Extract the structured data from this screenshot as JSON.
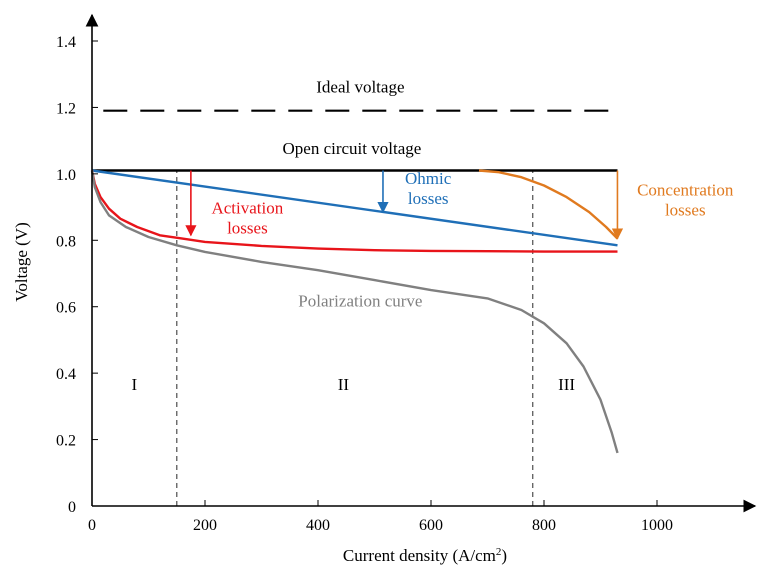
{
  "chart_data": {
    "type": "line",
    "title": "",
    "xlabel": "Current density (A/cm",
    "xlabel_sup": "2",
    "xlabel_close": ")",
    "ylabel": "Voltage (V)",
    "xlim": [
      0,
      1180
    ],
    "ylim": [
      0,
      1.5
    ],
    "xticks": [
      0,
      200,
      400,
      600,
      800,
      1000
    ],
    "yticks": [
      0,
      0.2,
      0.4,
      0.6,
      0.8,
      1.0,
      1.2,
      1.4
    ],
    "ytick_labels": [
      "0",
      "0.2",
      "0.4",
      "0.6",
      "0.8",
      "1.0",
      "1.2",
      "1.4"
    ],
    "grid": false,
    "series": [
      {
        "name": "Ideal voltage",
        "color": "#000000",
        "dash": "dashed",
        "x": [
          20,
          930
        ],
        "y": [
          1.19,
          1.19
        ]
      },
      {
        "name": "Open circuit voltage",
        "color": "#000000",
        "dash": "solid",
        "x": [
          0,
          930
        ],
        "y": [
          1.01,
          1.01
        ]
      },
      {
        "name": "",
        "color": "#1f6fb7",
        "dash": "solid",
        "x": [
          0,
          930
        ],
        "y": [
          1.01,
          0.785
        ]
      },
      {
        "name": "",
        "color": "#e8141a",
        "dash": "solid",
        "x": [
          0,
          5,
          15,
          30,
          50,
          80,
          120,
          160,
          200,
          300,
          400,
          500,
          600,
          700,
          800,
          930
        ],
        "y": [
          1.01,
          0.97,
          0.93,
          0.895,
          0.865,
          0.84,
          0.815,
          0.805,
          0.795,
          0.783,
          0.775,
          0.77,
          0.768,
          0.767,
          0.766,
          0.766
        ]
      },
      {
        "name": "",
        "color": "#e07a1f",
        "dash": "solid",
        "x": [
          685,
          720,
          760,
          800,
          840,
          880,
          910,
          930
        ],
        "y": [
          1.01,
          1.005,
          0.99,
          0.965,
          0.93,
          0.885,
          0.84,
          0.805
        ]
      },
      {
        "name": "Polarization curve",
        "color": "#808080",
        "dash": "solid",
        "x": [
          0,
          5,
          15,
          30,
          60,
          100,
          150,
          200,
          300,
          400,
          500,
          600,
          700,
          760,
          800,
          840,
          870,
          900,
          920,
          930
        ],
        "y": [
          1.01,
          0.96,
          0.915,
          0.875,
          0.84,
          0.81,
          0.785,
          0.765,
          0.735,
          0.71,
          0.68,
          0.65,
          0.625,
          0.59,
          0.55,
          0.49,
          0.42,
          0.32,
          0.22,
          0.16
        ]
      }
    ],
    "region_dividers": [
      {
        "x": 150,
        "y": [
          0,
          1.01
        ]
      },
      {
        "x": 780,
        "y": [
          0,
          1.01
        ]
      }
    ],
    "regions": [
      {
        "label": "I",
        "x": 75,
        "y": 0.35
      },
      {
        "label": "II",
        "x": 445,
        "y": 0.35
      },
      {
        "label": "III",
        "x": 840,
        "y": 0.35
      }
    ],
    "annotations": [
      {
        "lines": [
          "Ideal voltage"
        ],
        "x": 475,
        "y": 1.245,
        "color": "#000000",
        "anchor": "middle"
      },
      {
        "lines": [
          "Open circuit voltage"
        ],
        "x": 460,
        "y": 1.06,
        "color": "#000000",
        "anchor": "middle"
      },
      {
        "lines": [
          "Ohmic",
          "losses"
        ],
        "x": 595,
        "y": 0.97,
        "color": "#1f6fb7",
        "anchor": "middle"
      },
      {
        "lines": [
          "Activation",
          "losses"
        ],
        "x": 275,
        "y": 0.88,
        "color": "#e8141a",
        "anchor": "middle"
      },
      {
        "lines": [
          "Concentration",
          "losses"
        ],
        "x": 1050,
        "y": 0.935,
        "color": "#e07a1f",
        "anchor": "middle"
      },
      {
        "lines": [
          "Polarization curve"
        ],
        "x": 475,
        "y": 0.6,
        "color": "#808080",
        "anchor": "middle"
      }
    ],
    "loss_arrows": [
      {
        "color": "#e8141a",
        "x": 175,
        "y_from": 1.01,
        "y_to": 0.815
      },
      {
        "color": "#1f6fb7",
        "x": 515,
        "y_from": 1.01,
        "y_to": 0.885
      },
      {
        "color": "#e07a1f",
        "x": 930,
        "y_from": 1.01,
        "y_to": 0.805
      }
    ]
  }
}
